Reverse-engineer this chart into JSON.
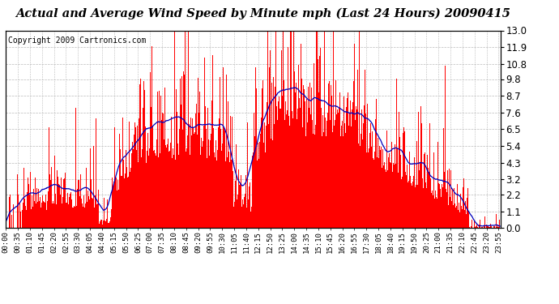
{
  "title": "Actual and Average Wind Speed by Minute mph (Last 24 Hours) 20090415",
  "copyright": "Copyright 2009 Cartronics.com",
  "ylim": [
    0.0,
    13.0
  ],
  "yticks": [
    0.0,
    1.1,
    2.2,
    3.2,
    4.3,
    5.4,
    6.5,
    7.6,
    8.7,
    9.8,
    10.8,
    11.9,
    13.0
  ],
  "bar_color": "#ff0000",
  "line_color": "#0000bb",
  "background_color": "#ffffff",
  "grid_color": "#bbbbbb",
  "title_fontsize": 10.5,
  "copyright_fontsize": 7,
  "tick_fontsize": 6.5,
  "ytick_fontsize": 8.5
}
